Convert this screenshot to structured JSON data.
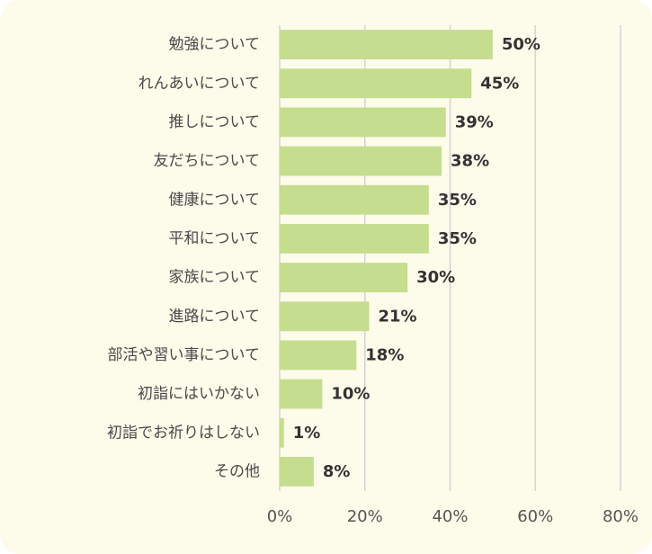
{
  "chart_data": {
    "type": "bar",
    "orientation": "horizontal",
    "categories": [
      "勉強について",
      "れんあいについて",
      "推しについて",
      "友だちについて",
      "健康について",
      "平和について",
      "家族について",
      "進路について",
      "部活や習い事について",
      "初詣にはいかない",
      "初詣でお祈りはしない",
      "その他"
    ],
    "values": [
      50,
      45,
      39,
      38,
      35,
      35,
      30,
      21,
      18,
      10,
      1,
      8
    ],
    "value_labels": [
      "50%",
      "45%",
      "39%",
      "38%",
      "35%",
      "35%",
      "30%",
      "21%",
      "18%",
      "10%",
      "1%",
      "8%"
    ],
    "xlim": [
      0,
      80
    ],
    "x_ticks": [
      0,
      20,
      40,
      60,
      80
    ],
    "x_tick_labels": [
      "0%",
      "20%",
      "40%",
      "60%",
      "80%"
    ],
    "grid": true,
    "colors": {
      "bar": "#c5dd8e",
      "grid": "#d4d4d4",
      "background": "#fdfbea"
    }
  }
}
